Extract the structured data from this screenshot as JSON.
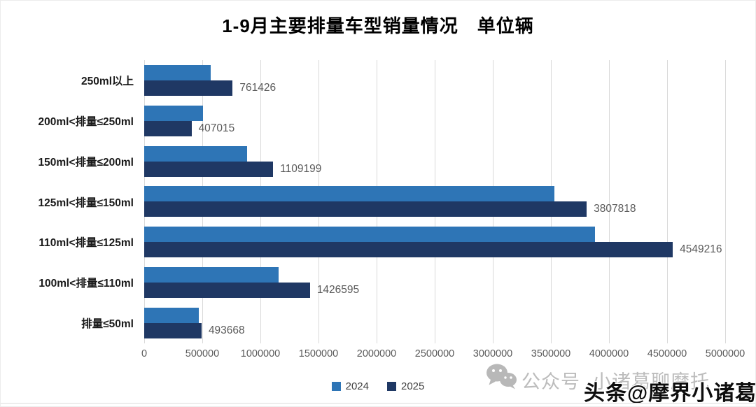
{
  "chart_data": {
    "type": "bar",
    "orientation": "horizontal",
    "title": "1-9月主要排量车型销量情况　单位辆",
    "categories": [
      "250ml以上",
      "200ml<排量≤250ml",
      "150ml<排量≤200ml",
      "125ml<排量≤150ml",
      "110ml<排量≤125ml",
      "100ml<排量≤110ml",
      "排量≤50ml"
    ],
    "series": [
      {
        "name": "2024",
        "color": "#2E75B6",
        "estimated_from_bar_lengths": true,
        "values": [
          570000,
          507000,
          885000,
          3530000,
          3880000,
          1157000,
          470000
        ]
      },
      {
        "name": "2025",
        "color": "#1F3864",
        "estimated_from_bar_lengths": false,
        "values": [
          761426,
          407015,
          1109199,
          3807818,
          4549216,
          1426595,
          493668
        ]
      }
    ],
    "data_labels_series": "2025",
    "x_axis": {
      "min": 0,
      "max": 5000000,
      "tick_interval": 500000,
      "tick_labels": [
        "0",
        "500000",
        "1000000",
        "1500000",
        "2000000",
        "2500000",
        "3000000",
        "3500000",
        "4000000",
        "4500000",
        "5000000"
      ]
    },
    "legend": {
      "position": "bottom",
      "entries": [
        "2024",
        "2025"
      ]
    },
    "grid": "vertical-only"
  },
  "colors": {
    "series_2024": "#2E75B6",
    "series_2025": "#1F3864",
    "gridline": "#D9D9D9",
    "axis_text": "#595959",
    "data_label_text": "#595959",
    "category_text": "#1A1A1A",
    "background": "#FFFFFF",
    "watermark_gray": "#BCBCBC",
    "toutiao_text": "#0D0D0D"
  },
  "watermarks": {
    "wechat_text": "公众号  小诸葛聊摩托",
    "toutiao_text": "头条@摩界小诸葛"
  }
}
